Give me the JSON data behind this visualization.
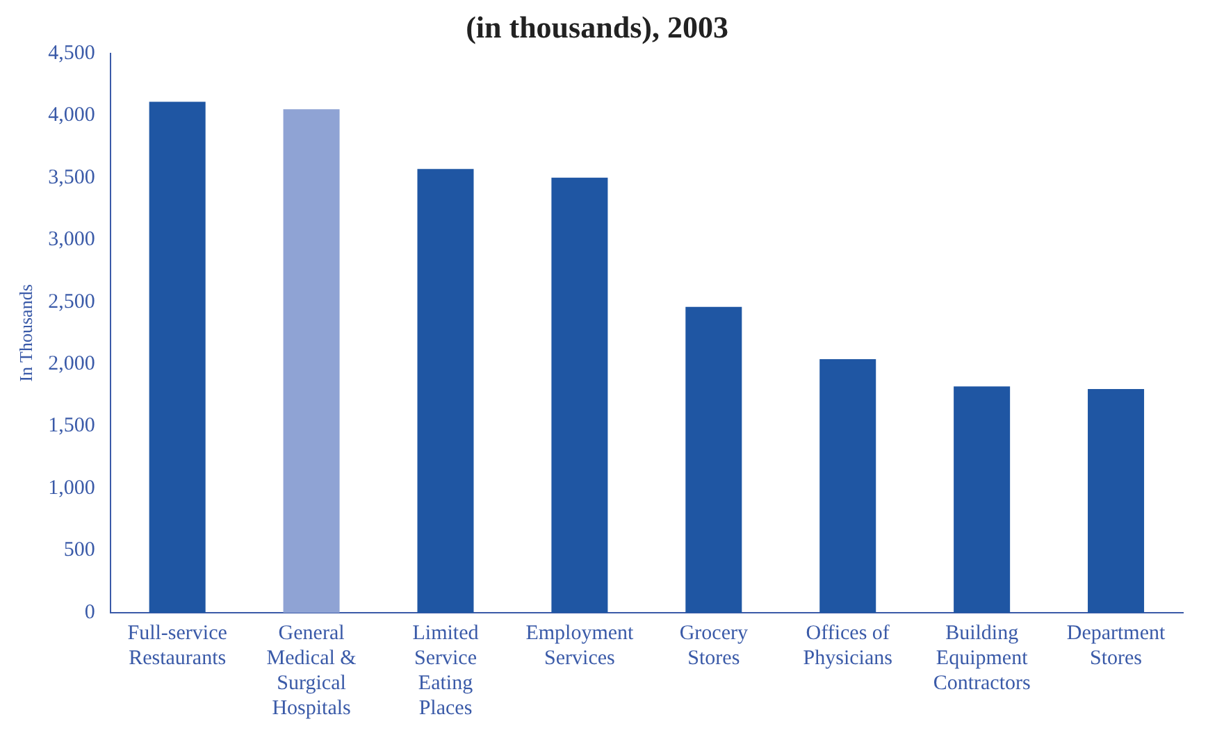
{
  "chart_data": {
    "type": "bar",
    "title": "(in thousands), 2003",
    "ylabel": "In Thousands",
    "categories": [
      "Full-service Restaurants",
      "General Medical & Surgical Hospitals",
      "Limited Service Eating Places",
      "Employment Services",
      "Grocery Stores",
      "Offices of Physicians",
      "Building Equipment Contractors",
      "Department Stores"
    ],
    "values": [
      4110,
      4050,
      3570,
      3500,
      2460,
      2040,
      1820,
      1800
    ],
    "colors": [
      "#1f56a3",
      "#8fa3d4",
      "#1f56a3",
      "#1f56a3",
      "#1f56a3",
      "#1f56a3",
      "#1f56a3",
      "#1f56a3"
    ],
    "ylim": [
      0,
      4500
    ],
    "yticks": [
      0,
      500,
      {
        "value": 1000,
        "label": "1,000"
      },
      {
        "value": 1500,
        "label": "1,500"
      },
      {
        "value": 2000,
        "label": "2,000"
      },
      {
        "value": 2500,
        "label": "2,500"
      },
      {
        "value": 3000,
        "label": "3,000"
      },
      {
        "value": 3500,
        "label": "3,500"
      },
      {
        "value": 4000,
        "label": "4,000"
      },
      {
        "value": 4500,
        "label": "4,500"
      }
    ],
    "grid": false,
    "legend": false
  }
}
